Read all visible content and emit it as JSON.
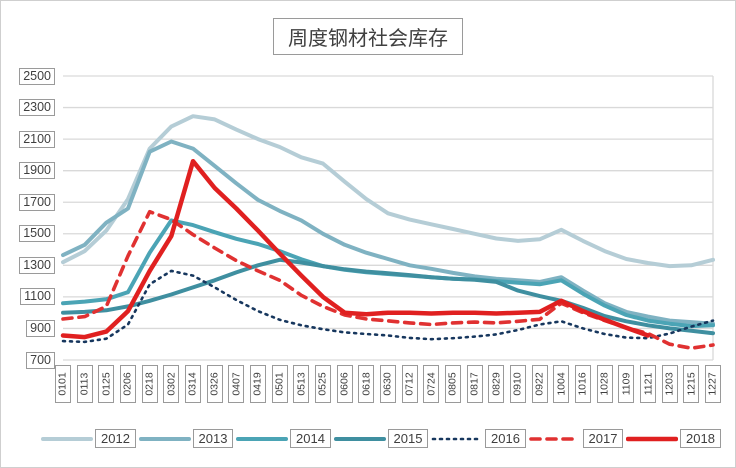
{
  "title": "周度钢材社会库存",
  "colors": {
    "gridline": "#d9d9d9",
    "plot_border": "#d9d9d9",
    "label_text": "#3f3f3f",
    "label_box_border": "#9a9a9a",
    "background": "#ffffff"
  },
  "chart_data": {
    "type": "line",
    "title": "周度钢材社会库存",
    "xlabel": "",
    "ylabel": "",
    "ylim": [
      700,
      2500
    ],
    "ytick_step": 200,
    "grid": "horizontal",
    "legend_position": "bottom",
    "yticks": [
      2500,
      2300,
      2100,
      1900,
      1700,
      1500,
      1300,
      1100,
      900,
      700
    ],
    "categories": [
      "0101",
      "0113",
      "0125",
      "0206",
      "0218",
      "0302",
      "0314",
      "0326",
      "0407",
      "0419",
      "0501",
      "0513",
      "0525",
      "0606",
      "0618",
      "0630",
      "0712",
      "0724",
      "0805",
      "0817",
      "0829",
      "0910",
      "0922",
      "1004",
      "1016",
      "1028",
      "1109",
      "1121",
      "1203",
      "1215",
      "1227"
    ],
    "series": [
      {
        "name": "2012",
        "color": "#b5cdd6",
        "dash": "",
        "width": 4,
        "values": [
          1320,
          1390,
          1520,
          1720,
          2040,
          2180,
          2245,
          2225,
          2160,
          2100,
          2050,
          1985,
          1945,
          1830,
          1720,
          1630,
          1590,
          1560,
          1530,
          1500,
          1470,
          1455,
          1465,
          1525,
          1455,
          1390,
          1340,
          1315,
          1295,
          1300,
          1335
        ]
      },
      {
        "name": "2013",
        "color": "#7fb2c2",
        "dash": "",
        "width": 4,
        "values": [
          1365,
          1430,
          1570,
          1660,
          2020,
          2085,
          2040,
          1930,
          1820,
          1715,
          1645,
          1585,
          1500,
          1430,
          1380,
          1340,
          1300,
          1278,
          1252,
          1230,
          1215,
          1205,
          1195,
          1225,
          1140,
          1060,
          1005,
          975,
          950,
          940,
          930
        ]
      },
      {
        "name": "2014",
        "color": "#4ba4b5",
        "dash": "",
        "width": 4,
        "values": [
          1060,
          1070,
          1085,
          1130,
          1380,
          1585,
          1555,
          1510,
          1468,
          1435,
          1390,
          1338,
          1295,
          1272,
          1256,
          1245,
          1235,
          1225,
          1215,
          1210,
          1200,
          1190,
          1180,
          1205,
          1120,
          1045,
          985,
          950,
          930,
          915,
          920
        ]
      },
      {
        "name": "2015",
        "color": "#3f8fa0",
        "dash": "",
        "width": 4,
        "values": [
          1000,
          1005,
          1015,
          1040,
          1075,
          1115,
          1160,
          1205,
          1255,
          1300,
          1335,
          1318,
          1295,
          1275,
          1260,
          1250,
          1238,
          1225,
          1215,
          1208,
          1195,
          1140,
          1105,
          1075,
          1030,
          978,
          945,
          920,
          900,
          885,
          870
        ]
      },
      {
        "name": "2016",
        "color": "#17375e",
        "dash": "2 5",
        "width": 2.6,
        "values": [
          820,
          815,
          835,
          925,
          1180,
          1265,
          1235,
          1160,
          1080,
          1010,
          955,
          920,
          895,
          875,
          865,
          855,
          840,
          832,
          838,
          848,
          862,
          890,
          925,
          945,
          900,
          865,
          842,
          838,
          868,
          912,
          950
        ]
      },
      {
        "name": "2017",
        "color": "#e03131",
        "dash": "9 7",
        "width": 3.6,
        "values": [
          960,
          975,
          1040,
          1360,
          1640,
          1590,
          1495,
          1410,
          1330,
          1265,
          1205,
          1110,
          1040,
          985,
          960,
          948,
          935,
          925,
          935,
          940,
          935,
          945,
          958,
          1060,
          1000,
          950,
          905,
          868,
          800,
          775,
          795
        ]
      },
      {
        "name": "2018",
        "color": "#e02020",
        "dash": "",
        "width": 4.5,
        "values": [
          855,
          845,
          880,
          1010,
          1265,
          1485,
          1960,
          1790,
          1660,
          1520,
          1375,
          1235,
          1100,
          1000,
          990,
          1000,
          1000,
          995,
          1000,
          1000,
          995,
          1000,
          1005,
          1075,
          1010,
          955,
          905,
          855,
          null,
          null,
          null
        ]
      }
    ]
  },
  "legend": {
    "items": [
      {
        "label": "2012"
      },
      {
        "label": "2013"
      },
      {
        "label": "2014"
      },
      {
        "label": "2015"
      },
      {
        "label": "2016"
      },
      {
        "label": "2017"
      },
      {
        "label": "2018"
      }
    ]
  }
}
